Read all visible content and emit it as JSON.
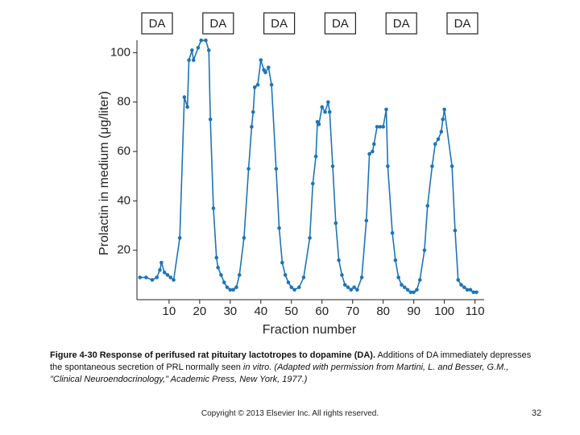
{
  "chart_data": {
    "type": "line",
    "annotations": [
      "DA",
      "DA",
      "DA",
      "DA",
      "DA",
      "DA"
    ],
    "xlabel": "Fraction number",
    "ylabel": "Prolactin in medium (μg/liter)",
    "x": [
      0.5,
      2.5,
      4.5,
      6,
      7,
      7.5,
      8.5,
      9.5,
      10.5,
      11.5,
      13.5,
      15,
      16,
      16.5,
      17.5,
      18,
      19.5,
      20.5,
      22,
      23,
      23.5,
      24.5,
      25.5,
      26,
      27,
      28,
      29,
      30,
      31,
      32,
      33,
      34.5,
      36,
      37,
      37.5,
      38,
      39,
      40,
      41,
      41.5,
      42.5,
      43.5,
      45,
      46,
      47,
      48,
      49,
      50,
      51,
      52.5,
      54,
      56,
      57,
      58,
      58.5,
      59,
      60,
      61,
      62,
      62.5,
      63.5,
      64.5,
      65.5,
      66.5,
      67.5,
      68.5,
      69.5,
      70.5,
      71.5,
      73,
      74.5,
      75.5,
      76.5,
      77,
      78,
      79,
      80,
      81,
      81.5,
      83,
      84,
      85,
      86,
      87,
      88,
      89,
      90,
      91,
      92,
      93.5,
      94.5,
      96,
      97,
      98,
      99,
      99.5,
      100,
      102.5,
      103.5,
      104.5,
      105.5,
      106.5,
      107.5,
      108.5,
      109.5,
      110.5
    ],
    "series": [
      {
        "color": "#1f74b4",
        "values": [
          9,
          9,
          8,
          9,
          12,
          15,
          11,
          10,
          9,
          8,
          25,
          82,
          78,
          97,
          101,
          97,
          102,
          105,
          105,
          101,
          73,
          37,
          17,
          13,
          10,
          7,
          5,
          4,
          4,
          5,
          10,
          25,
          53,
          70,
          76,
          86,
          87,
          97,
          93,
          92,
          94,
          87,
          53,
          29,
          15,
          10,
          7,
          5,
          4,
          5,
          9,
          25,
          47,
          58,
          72,
          71,
          78,
          76,
          80,
          76,
          54,
          31,
          16,
          10,
          6,
          5,
          4,
          5,
          4,
          9,
          32,
          59,
          60,
          63,
          70,
          70,
          70,
          77,
          54,
          27,
          16,
          9,
          6,
          5,
          4,
          3,
          3,
          4,
          8,
          20,
          38,
          54,
          63,
          65,
          68,
          73,
          77,
          54,
          28,
          8,
          6,
          5,
          4,
          4,
          3,
          3
        ]
      }
    ],
    "xlim": [
      -0.5,
      113
    ],
    "ylim": [
      0,
      106
    ],
    "xticks": [
      10,
      20,
      30,
      40,
      50,
      60,
      70,
      80,
      90,
      100,
      110
    ],
    "yticks": [
      20,
      40,
      60,
      80,
      100
    ],
    "grid": false
  },
  "caption": {
    "bold": "Figure 4-30 Response of perifused rat pituitary lactotropes to dopamine (DA).",
    "text": " Additions of DA immediately depresses the spontaneous secretion of PRL normally seen ",
    "italic": "in vitro. (Adapted with permission from Martini, L. and Besser, G.M., \"Clinical Neuroendocrinology,\" Academic Press, New York, 1977.)"
  },
  "footer": {
    "copyright": "Copyright © 2013 Elsevier Inc. All rights reserved.",
    "page": "32"
  }
}
